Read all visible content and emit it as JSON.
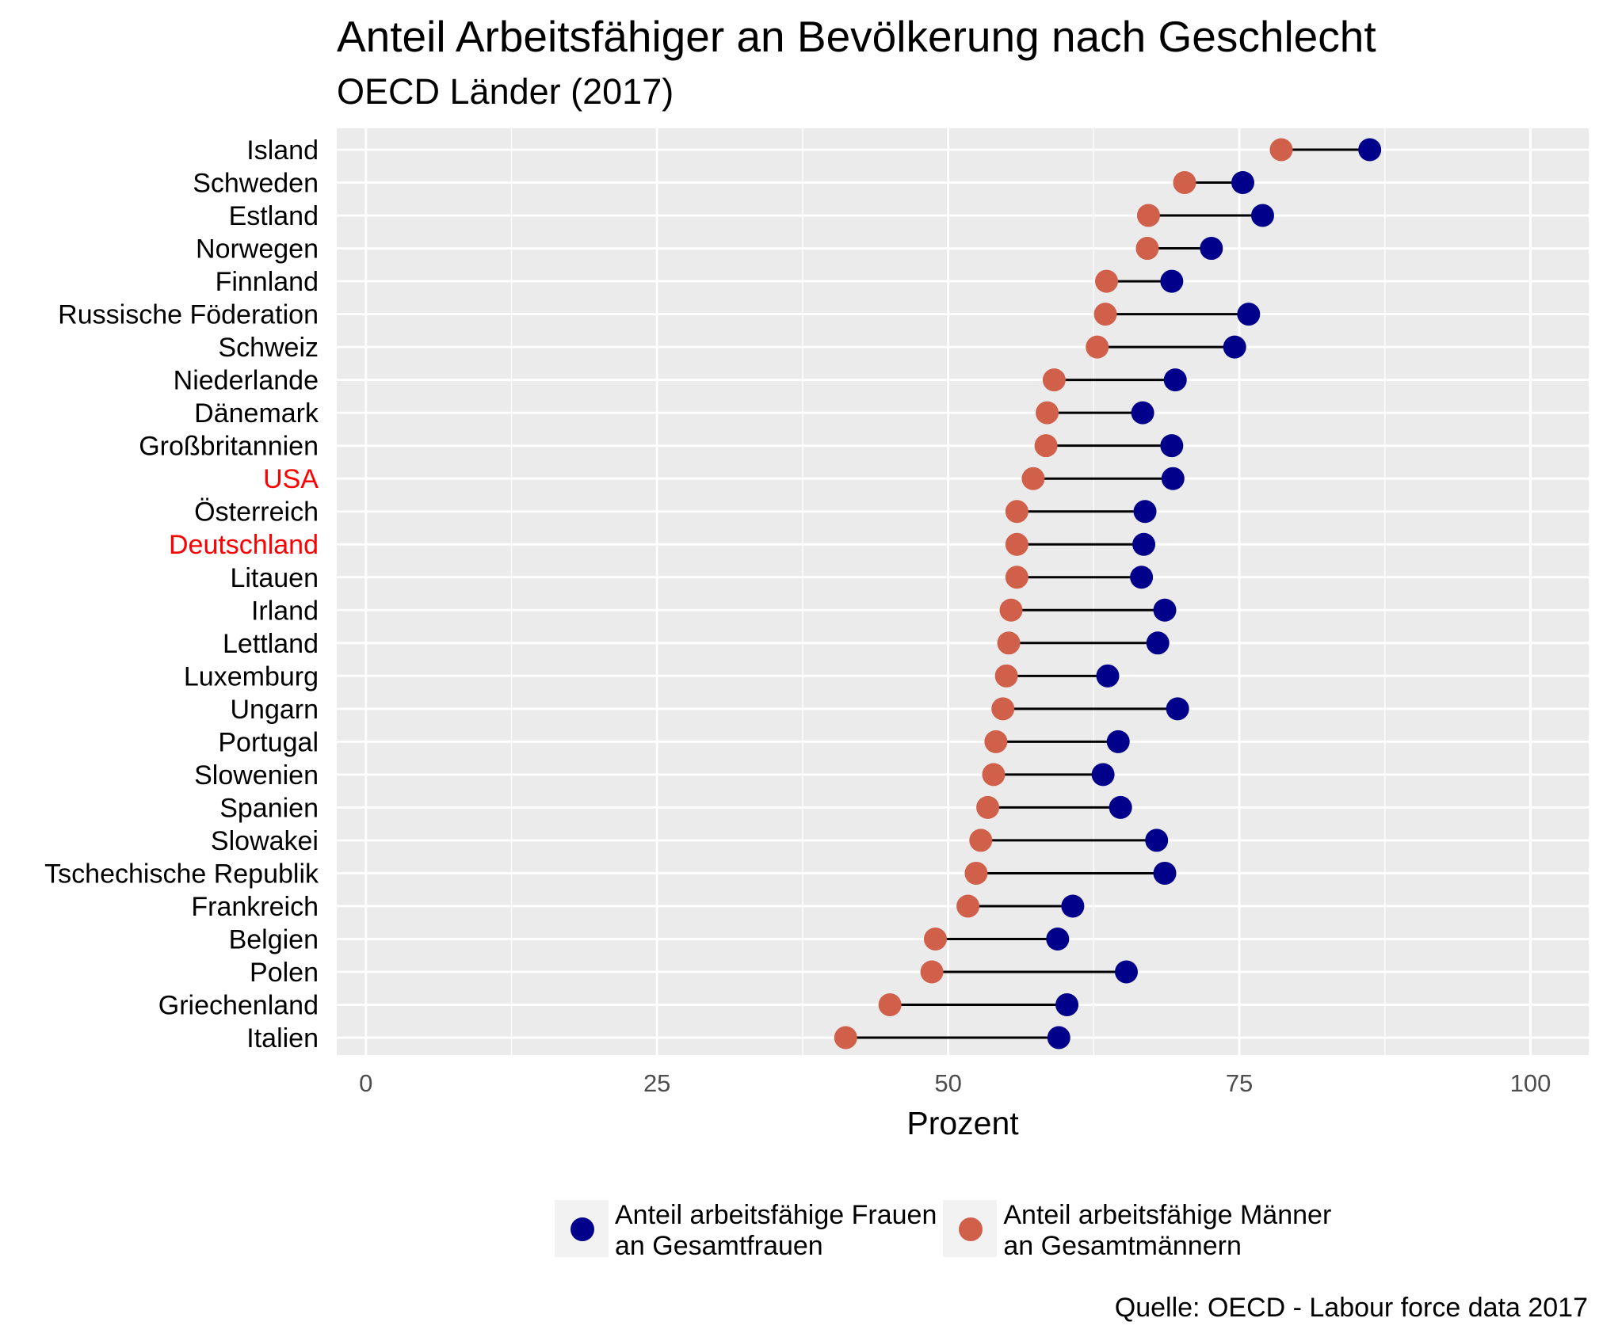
{
  "header": {
    "title": "Anteil Arbeitsfähiger an Bevölkerung nach Geschlecht",
    "subtitle": "OECD Länder (2017)"
  },
  "chart_data": {
    "type": "scatter",
    "subtype": "dumbbell",
    "title": "Anteil Arbeitsfähiger an Bevölkerung nach Geschlecht",
    "subtitle": "OECD Länder (2017)",
    "xlabel": "Prozent",
    "ylabel": "",
    "xlim": [
      -2.5,
      105
    ],
    "x_ticks": [
      0,
      25,
      50,
      75,
      100
    ],
    "grid": true,
    "legend_position": "bottom",
    "categories": [
      "Island",
      "Schweden",
      "Estland",
      "Norwegen",
      "Finnland",
      "Russische Föderation",
      "Schweiz",
      "Niederlande",
      "Dänemark",
      "Großbritannien",
      "USA",
      "Österreich",
      "Deutschland",
      "Litauen",
      "Irland",
      "Lettland",
      "Luxemburg",
      "Ungarn",
      "Portugal",
      "Slowenien",
      "Spanien",
      "Slowakei",
      "Tschechische Republik",
      "Frankreich",
      "Belgien",
      "Polen",
      "Griechenland",
      "Italien"
    ],
    "highlighted_categories": [
      "USA",
      "Deutschland"
    ],
    "highlight_color": "#ff0000",
    "series": [
      {
        "name": "Anteil arbeitsfähige Frauen\nan Gesamtfrauen",
        "color": "#00008b",
        "values": [
          86.2,
          75.3,
          77.0,
          72.6,
          69.2,
          75.8,
          74.6,
          69.5,
          66.7,
          69.2,
          69.3,
          66.9,
          66.8,
          66.6,
          68.6,
          68.0,
          63.7,
          69.7,
          64.6,
          63.3,
          64.8,
          67.9,
          68.6,
          60.7,
          59.4,
          65.3,
          60.2,
          59.5
        ]
      },
      {
        "name": "Anteil arbeitsfähige Männer\nan Gesamtmännern",
        "color": "#d1604a",
        "values": [
          78.6,
          70.3,
          67.2,
          67.1,
          63.6,
          63.5,
          62.8,
          59.1,
          58.5,
          58.4,
          57.3,
          55.9,
          55.9,
          55.9,
          55.4,
          55.2,
          55.0,
          54.7,
          54.1,
          53.9,
          53.4,
          52.8,
          52.4,
          51.7,
          48.9,
          48.6,
          45.0,
          41.2
        ]
      }
    ]
  },
  "footer": {
    "source": "Quelle: OECD - Labour force data 2017"
  }
}
